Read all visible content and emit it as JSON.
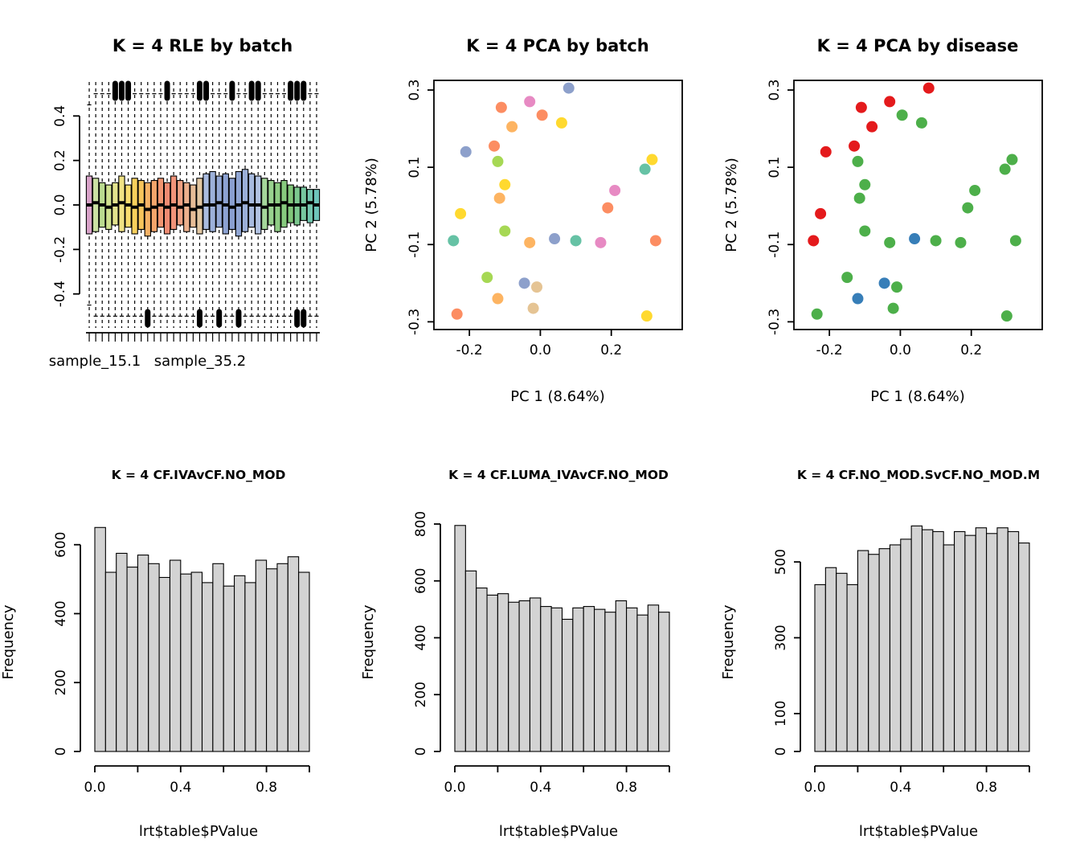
{
  "figure": {
    "background": "#ffffff"
  },
  "chart_data": [
    {
      "type": "boxplot",
      "title": "K = 4 RLE by batch",
      "xlabel": "",
      "ylabel": "",
      "ylim": [
        -0.56,
        0.56
      ],
      "yticks": [
        -0.4,
        -0.2,
        0.0,
        0.2,
        0.4
      ],
      "ytick_labels": [
        "-0.4",
        "-0.2",
        "0.0",
        "0.2",
        "0.4"
      ],
      "x_labels": [
        {
          "text": "sample_15.1"
        },
        {
          "text": "sample_35.2"
        }
      ],
      "boxes": [
        {
          "c": "#D9A3C9",
          "q1": -0.13,
          "m": 0.0,
          "q3": 0.13,
          "lo": -0.45,
          "hi": 0.45,
          "ot": false,
          "ob": false
        },
        {
          "c": "#CBE1A3",
          "q1": -0.12,
          "m": 0.01,
          "q3": 0.12,
          "lo": -0.5,
          "hi": 0.5,
          "ot": false,
          "ob": false
        },
        {
          "c": "#BBDB90",
          "q1": -0.1,
          "m": 0.0,
          "q3": 0.1,
          "lo": -0.5,
          "hi": 0.5,
          "ot": false,
          "ob": false
        },
        {
          "c": "#CFE08F",
          "q1": -0.11,
          "m": -0.01,
          "q3": 0.09,
          "lo": -0.5,
          "hi": 0.5,
          "ot": false,
          "ob": false
        },
        {
          "c": "#E3E38D",
          "q1": -0.09,
          "m": 0.0,
          "q3": 0.1,
          "lo": -0.5,
          "hi": 0.5,
          "ot": true,
          "ob": false
        },
        {
          "c": "#F0E284",
          "q1": -0.12,
          "m": 0.01,
          "q3": 0.13,
          "lo": -0.5,
          "hi": 0.5,
          "ot": true,
          "ob": false
        },
        {
          "c": "#F7DC6F",
          "q1": -0.1,
          "m": 0.0,
          "q3": 0.09,
          "lo": -0.5,
          "hi": 0.5,
          "ot": true,
          "ob": false
        },
        {
          "c": "#F8D05C",
          "q1": -0.13,
          "m": -0.01,
          "q3": 0.12,
          "lo": -0.5,
          "hi": 0.5,
          "ot": false,
          "ob": false
        },
        {
          "c": "#F6C45B",
          "q1": -0.11,
          "m": 0.0,
          "q3": 0.11,
          "lo": -0.5,
          "hi": 0.5,
          "ot": false,
          "ob": false
        },
        {
          "c": "#F5B266",
          "q1": -0.14,
          "m": -0.02,
          "q3": 0.1,
          "lo": -0.5,
          "hi": 0.5,
          "ot": false,
          "ob": true
        },
        {
          "c": "#F5A56B",
          "q1": -0.12,
          "m": -0.01,
          "q3": 0.11,
          "lo": -0.5,
          "hi": 0.5,
          "ot": false,
          "ob": false
        },
        {
          "c": "#F29571",
          "q1": -0.1,
          "m": 0.0,
          "q3": 0.12,
          "lo": -0.5,
          "hi": 0.5,
          "ot": false,
          "ob": false
        },
        {
          "c": "#EF8B72",
          "q1": -0.13,
          "m": -0.01,
          "q3": 0.1,
          "lo": -0.5,
          "hi": 0.5,
          "ot": true,
          "ob": false
        },
        {
          "c": "#F09379",
          "q1": -0.11,
          "m": 0.0,
          "q3": 0.13,
          "lo": -0.5,
          "hi": 0.5,
          "ot": false,
          "ob": false
        },
        {
          "c": "#EFA183",
          "q1": -0.09,
          "m": -0.01,
          "q3": 0.11,
          "lo": -0.5,
          "hi": 0.5,
          "ot": false,
          "ob": false
        },
        {
          "c": "#ECB08D",
          "q1": -0.12,
          "m": 0.0,
          "q3": 0.1,
          "lo": -0.5,
          "hi": 0.5,
          "ot": false,
          "ob": false
        },
        {
          "c": "#E7BD97",
          "q1": -0.1,
          "m": -0.02,
          "q3": 0.09,
          "lo": -0.5,
          "hi": 0.5,
          "ot": false,
          "ob": false
        },
        {
          "c": "#E2C7A2",
          "q1": -0.13,
          "m": -0.01,
          "q3": 0.12,
          "lo": -0.5,
          "hi": 0.5,
          "ot": true,
          "ob": true
        },
        {
          "c": "#A9BBDF",
          "q1": -0.11,
          "m": 0.0,
          "q3": 0.14,
          "lo": -0.5,
          "hi": 0.5,
          "ot": true,
          "ob": false
        },
        {
          "c": "#9DB1DA",
          "q1": -0.12,
          "m": 0.0,
          "q3": 0.15,
          "lo": -0.5,
          "hi": 0.5,
          "ot": false,
          "ob": false
        },
        {
          "c": "#93A8D5",
          "q1": -0.1,
          "m": 0.01,
          "q3": 0.13,
          "lo": -0.5,
          "hi": 0.5,
          "ot": false,
          "ob": true
        },
        {
          "c": "#8CA2D2",
          "q1": -0.13,
          "m": 0.0,
          "q3": 0.14,
          "lo": -0.5,
          "hi": 0.5,
          "ot": false,
          "ob": false
        },
        {
          "c": "#8AA0D1",
          "q1": -0.11,
          "m": -0.01,
          "q3": 0.12,
          "lo": -0.5,
          "hi": 0.5,
          "ot": true,
          "ob": false
        },
        {
          "c": "#90A6D4",
          "q1": -0.14,
          "m": 0.0,
          "q3": 0.15,
          "lo": -0.5,
          "hi": 0.5,
          "ot": false,
          "ob": true
        },
        {
          "c": "#9BB0D9",
          "q1": -0.12,
          "m": 0.01,
          "q3": 0.16,
          "lo": -0.5,
          "hi": 0.5,
          "ot": false,
          "ob": false
        },
        {
          "c": "#A7BADE",
          "q1": -0.1,
          "m": 0.0,
          "q3": 0.14,
          "lo": -0.5,
          "hi": 0.5,
          "ot": true,
          "ob": false
        },
        {
          "c": "#B2C3E3",
          "q1": -0.13,
          "m": 0.0,
          "q3": 0.13,
          "lo": -0.5,
          "hi": 0.5,
          "ot": true,
          "ob": false
        },
        {
          "c": "#A5D79B",
          "q1": -0.11,
          "m": -0.01,
          "q3": 0.12,
          "lo": -0.5,
          "hi": 0.5,
          "ot": false,
          "ob": false
        },
        {
          "c": "#99D28F",
          "q1": -0.09,
          "m": 0.0,
          "q3": 0.11,
          "lo": -0.5,
          "hi": 0.5,
          "ot": false,
          "ob": false
        },
        {
          "c": "#8FCD85",
          "q1": -0.12,
          "m": 0.0,
          "q3": 0.1,
          "lo": -0.5,
          "hi": 0.5,
          "ot": false,
          "ob": false
        },
        {
          "c": "#87CA7E",
          "q1": -0.1,
          "m": 0.01,
          "q3": 0.11,
          "lo": -0.5,
          "hi": 0.5,
          "ot": false,
          "ob": false
        },
        {
          "c": "#81C77A",
          "q1": -0.08,
          "m": 0.0,
          "q3": 0.09,
          "lo": -0.5,
          "hi": 0.5,
          "ot": true,
          "ob": false
        },
        {
          "c": "#7CC88F",
          "q1": -0.09,
          "m": 0.0,
          "q3": 0.08,
          "lo": -0.5,
          "hi": 0.5,
          "ot": true,
          "ob": true
        },
        {
          "c": "#77C7A0",
          "q1": -0.07,
          "m": 0.0,
          "q3": 0.08,
          "lo": -0.5,
          "hi": 0.5,
          "ot": true,
          "ob": true
        },
        {
          "c": "#72C6AF",
          "q1": -0.08,
          "m": 0.01,
          "q3": 0.07,
          "lo": -0.5,
          "hi": 0.5,
          "ot": false,
          "ob": false
        },
        {
          "c": "#6EC5BB",
          "q1": -0.07,
          "m": 0.0,
          "q3": 0.07,
          "lo": -0.5,
          "hi": 0.5,
          "ot": false,
          "ob": false
        }
      ]
    },
    {
      "type": "scatter",
      "title": "K = 4 PCA by batch",
      "xlabel": "PC 1 (8.64%)",
      "ylabel": "PC 2 (5.78%)",
      "xlim": [
        -0.3,
        0.4
      ],
      "ylim": [
        -0.32,
        0.325
      ],
      "xticks": [
        -0.2,
        0.0,
        0.2
      ],
      "xtick_labels": [
        "-0.2",
        "0.0",
        "0.2"
      ],
      "yticks": [
        -0.3,
        -0.1,
        0.1,
        0.3
      ],
      "ytick_labels": [
        "-0.3",
        "-0.1",
        "0.1",
        "0.3"
      ],
      "points": [
        {
          "x": -0.11,
          "y": 0.255,
          "c": "#FC8D62"
        },
        {
          "x": -0.03,
          "y": 0.27,
          "c": "#E78AC3"
        },
        {
          "x": 0.005,
          "y": 0.235,
          "c": "#FC8D62"
        },
        {
          "x": -0.08,
          "y": 0.205,
          "c": "#FDB462"
        },
        {
          "x": 0.06,
          "y": 0.215,
          "c": "#FFD92F"
        },
        {
          "x": 0.08,
          "y": 0.305,
          "c": "#8DA0CB"
        },
        {
          "x": -0.21,
          "y": 0.14,
          "c": "#8DA0CB"
        },
        {
          "x": -0.13,
          "y": 0.155,
          "c": "#FC8D62"
        },
        {
          "x": -0.12,
          "y": 0.115,
          "c": "#A6D854"
        },
        {
          "x": -0.1,
          "y": 0.055,
          "c": "#FFD92F"
        },
        {
          "x": -0.115,
          "y": 0.02,
          "c": "#FDB462"
        },
        {
          "x": -0.225,
          "y": -0.02,
          "c": "#FFD92F"
        },
        {
          "x": 0.315,
          "y": 0.12,
          "c": "#FFD92F"
        },
        {
          "x": 0.295,
          "y": 0.095,
          "c": "#66C2A5"
        },
        {
          "x": 0.21,
          "y": 0.04,
          "c": "#E78AC3"
        },
        {
          "x": 0.19,
          "y": -0.005,
          "c": "#FC8D62"
        },
        {
          "x": -0.245,
          "y": -0.09,
          "c": "#66C2A5"
        },
        {
          "x": -0.1,
          "y": -0.065,
          "c": "#A6D854"
        },
        {
          "x": -0.03,
          "y": -0.095,
          "c": "#FDB462"
        },
        {
          "x": 0.04,
          "y": -0.085,
          "c": "#8DA0CB"
        },
        {
          "x": 0.1,
          "y": -0.09,
          "c": "#66C2A5"
        },
        {
          "x": 0.17,
          "y": -0.095,
          "c": "#E78AC3"
        },
        {
          "x": 0.325,
          "y": -0.09,
          "c": "#FC8D62"
        },
        {
          "x": -0.15,
          "y": -0.185,
          "c": "#A6D854"
        },
        {
          "x": -0.045,
          "y": -0.2,
          "c": "#8DA0CB"
        },
        {
          "x": -0.01,
          "y": -0.21,
          "c": "#E5C494"
        },
        {
          "x": -0.12,
          "y": -0.24,
          "c": "#FDB462"
        },
        {
          "x": -0.02,
          "y": -0.265,
          "c": "#E5C494"
        },
        {
          "x": -0.235,
          "y": -0.28,
          "c": "#FC8D62"
        },
        {
          "x": 0.3,
          "y": -0.285,
          "c": "#FFD92F"
        }
      ]
    },
    {
      "type": "scatter",
      "title": "K = 4 PCA by disease",
      "xlabel": "PC 1 (8.64%)",
      "ylabel": "PC 2 (5.78%)",
      "xlim": [
        -0.3,
        0.4
      ],
      "ylim": [
        -0.32,
        0.325
      ],
      "xticks": [
        -0.2,
        0.0,
        0.2
      ],
      "xtick_labels": [
        "-0.2",
        "0.0",
        "0.2"
      ],
      "yticks": [
        -0.3,
        -0.1,
        0.1,
        0.3
      ],
      "ytick_labels": [
        "-0.3",
        "-0.1",
        "0.1",
        "0.3"
      ],
      "points": [
        {
          "x": -0.11,
          "y": 0.255,
          "c": "#E41A1C"
        },
        {
          "x": -0.03,
          "y": 0.27,
          "c": "#E41A1C"
        },
        {
          "x": 0.005,
          "y": 0.235,
          "c": "#4DAF4A"
        },
        {
          "x": -0.08,
          "y": 0.205,
          "c": "#E41A1C"
        },
        {
          "x": 0.06,
          "y": 0.215,
          "c": "#4DAF4A"
        },
        {
          "x": 0.08,
          "y": 0.305,
          "c": "#E41A1C"
        },
        {
          "x": -0.21,
          "y": 0.14,
          "c": "#E41A1C"
        },
        {
          "x": -0.13,
          "y": 0.155,
          "c": "#E41A1C"
        },
        {
          "x": -0.12,
          "y": 0.115,
          "c": "#4DAF4A"
        },
        {
          "x": -0.1,
          "y": 0.055,
          "c": "#4DAF4A"
        },
        {
          "x": -0.115,
          "y": 0.02,
          "c": "#4DAF4A"
        },
        {
          "x": -0.225,
          "y": -0.02,
          "c": "#E41A1C"
        },
        {
          "x": 0.315,
          "y": 0.12,
          "c": "#4DAF4A"
        },
        {
          "x": 0.295,
          "y": 0.095,
          "c": "#4DAF4A"
        },
        {
          "x": 0.21,
          "y": 0.04,
          "c": "#4DAF4A"
        },
        {
          "x": 0.19,
          "y": -0.005,
          "c": "#4DAF4A"
        },
        {
          "x": -0.245,
          "y": -0.09,
          "c": "#E41A1C"
        },
        {
          "x": -0.1,
          "y": -0.065,
          "c": "#4DAF4A"
        },
        {
          "x": -0.03,
          "y": -0.095,
          "c": "#4DAF4A"
        },
        {
          "x": 0.04,
          "y": -0.085,
          "c": "#377EB8"
        },
        {
          "x": 0.1,
          "y": -0.09,
          "c": "#4DAF4A"
        },
        {
          "x": 0.17,
          "y": -0.095,
          "c": "#4DAF4A"
        },
        {
          "x": 0.325,
          "y": -0.09,
          "c": "#4DAF4A"
        },
        {
          "x": -0.15,
          "y": -0.185,
          "c": "#4DAF4A"
        },
        {
          "x": -0.045,
          "y": -0.2,
          "c": "#377EB8"
        },
        {
          "x": -0.01,
          "y": -0.21,
          "c": "#4DAF4A"
        },
        {
          "x": -0.12,
          "y": -0.24,
          "c": "#377EB8"
        },
        {
          "x": -0.02,
          "y": -0.265,
          "c": "#4DAF4A"
        },
        {
          "x": -0.235,
          "y": -0.28,
          "c": "#4DAF4A"
        },
        {
          "x": 0.3,
          "y": -0.285,
          "c": "#4DAF4A"
        }
      ]
    },
    {
      "type": "histogram",
      "title": "K = 4 CF.IVAvCF.NO_MOD",
      "xlabel": "lrt$table$PValue",
      "ylabel": "Frequency",
      "bin_start": 0,
      "bin_width": 0.05,
      "counts": [
        650,
        520,
        575,
        535,
        570,
        545,
        505,
        555,
        515,
        520,
        490,
        545,
        480,
        510,
        490,
        555,
        530,
        545,
        565,
        520
      ],
      "ylim": [
        0,
        660
      ],
      "yticks": [
        0,
        200,
        400,
        600
      ],
      "ytick_labels": [
        "0",
        "200",
        "400",
        "600"
      ],
      "xticks": [
        0,
        0.2,
        0.4,
        0.6,
        0.8,
        1.0
      ],
      "xtick_labels": [
        "0.0",
        "",
        "0.4",
        "",
        "0.8",
        ""
      ],
      "bar_fill": "#D3D3D3"
    },
    {
      "type": "histogram",
      "title": "K = 4 CF.LUMA_IVAvCF.NO_MOD",
      "xlabel": "lrt$table$PValue",
      "ylabel": "Frequency",
      "bin_start": 0,
      "bin_width": 0.05,
      "counts": [
        795,
        635,
        575,
        550,
        555,
        525,
        530,
        540,
        510,
        505,
        465,
        505,
        510,
        500,
        490,
        530,
        505,
        480,
        515,
        490
      ],
      "ylim": [
        0,
        800
      ],
      "yticks": [
        0,
        200,
        400,
        600,
        800
      ],
      "ytick_labels": [
        "0",
        "200",
        "400",
        "600",
        "800"
      ],
      "xticks": [
        0,
        0.2,
        0.4,
        0.6,
        0.8,
        1.0
      ],
      "xtick_labels": [
        "0.0",
        "",
        "0.4",
        "",
        "0.8",
        ""
      ],
      "bar_fill": "#D3D3D3"
    },
    {
      "type": "histogram",
      "title": "K = 4 CF.NO_MOD.SvCF.NO_MOD.M",
      "xlabel": "lrt$table$PValue",
      "ylabel": "Frequency",
      "bin_start": 0,
      "bin_width": 0.05,
      "counts": [
        440,
        485,
        470,
        440,
        530,
        520,
        535,
        545,
        560,
        595,
        585,
        580,
        545,
        580,
        570,
        590,
        575,
        590,
        580,
        550
      ],
      "ylim": [
        0,
        600
      ],
      "yticks": [
        0,
        100,
        300,
        500
      ],
      "ytick_labels": [
        "0",
        "100",
        "300",
        "500"
      ],
      "xticks": [
        0,
        0.2,
        0.4,
        0.6,
        0.8,
        1.0
      ],
      "xtick_labels": [
        "0.0",
        "",
        "0.4",
        "",
        "0.8",
        ""
      ],
      "bar_fill": "#D3D3D3"
    }
  ]
}
